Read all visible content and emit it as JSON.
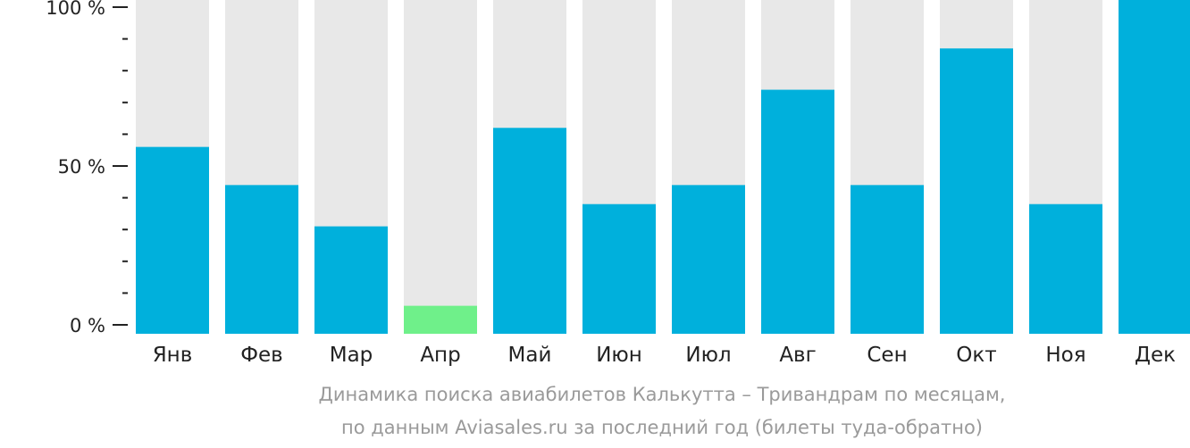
{
  "chart_data": {
    "type": "bar",
    "categories": [
      "Янв",
      "Фев",
      "Мар",
      "Апр",
      "Май",
      "Июн",
      "Июл",
      "Авг",
      "Сен",
      "Окт",
      "Ноя",
      "Дек"
    ],
    "values": [
      56,
      44,
      31,
      6,
      62,
      38,
      44,
      74,
      44,
      87,
      38,
      104
    ],
    "highlight_category": "Апр",
    "ylim": [
      0,
      100
    ],
    "yticks": [
      {
        "value": 100,
        "label": "100 %"
      },
      {
        "value": 50,
        "label": "50 %"
      },
      {
        "value": 0,
        "label": "0 %"
      }
    ],
    "minor_tick_step": 10,
    "colors": {
      "bar": "#00b0dc",
      "highlight": "#6ff08a",
      "background_bar": "#e8e8e8",
      "axis": "#222222"
    }
  },
  "caption": {
    "line1": "Динамика поиска авиабилетов Калькутта – Тривандрам по месяцам,",
    "line2": "по данным Aviasales.ru за последний год (билеты туда-обратно)"
  }
}
